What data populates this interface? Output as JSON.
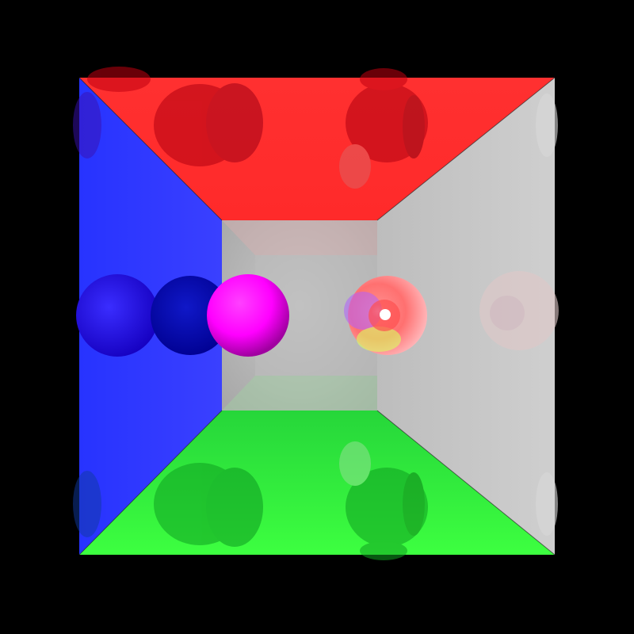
{
  "scene": {
    "description_kind": "ray-traced render",
    "background_color": "#000000",
    "walls": {
      "ceiling": "#ff2020",
      "floor": "#20ff30",
      "left": "#2a35ff",
      "right": "#c9c9c9",
      "back": "#c4c4c4"
    },
    "spheres": [
      {
        "name": "magenta-sphere",
        "color": "#ff00ff",
        "material": "diffuse"
      },
      {
        "name": "glass-sphere",
        "color": "#ffc0c8",
        "material": "reflective-transparent"
      }
    ]
  }
}
